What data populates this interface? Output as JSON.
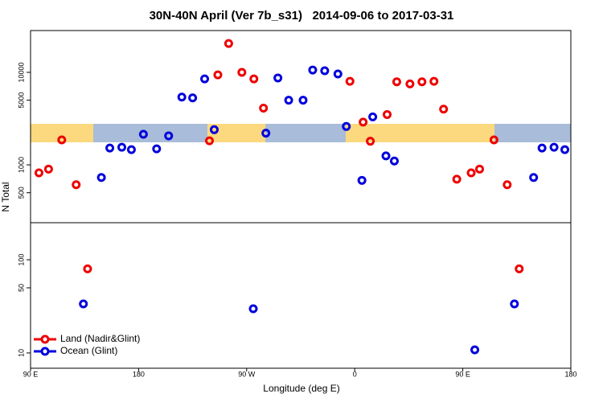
{
  "chart_data": [
    {
      "type": "scatter",
      "title": "30N-40N April (Ver 7b_s31)   2014-09-06 to 2017-03-31",
      "y_label": "N Total",
      "log_y": true,
      "xlim": [
        90,
        540
      ],
      "ylim": [
        237,
        28300
      ],
      "yticks": [
        500,
        1000,
        5000,
        10000
      ],
      "series": [
        {
          "color": "#ee0000",
          "x": [
            97,
            105,
            116,
            128,
            239,
            246,
            255,
            266,
            276,
            284,
            356,
            367,
            373,
            387,
            395,
            406,
            416,
            426,
            434,
            445,
            457,
            464,
            476,
            487
          ],
          "values": [
            820,
            900,
            1860,
            610,
            1820,
            9400,
            20500,
            10000,
            8500,
            4100,
            8000,
            2900,
            1800,
            3500,
            7900,
            7500,
            7900,
            8000,
            4000,
            700,
            820,
            900,
            1860,
            610
          ]
        },
        {
          "color": "#0000dd",
          "x": [
            149,
            156,
            166,
            174,
            184,
            195,
            205,
            216,
            225,
            235,
            243,
            286,
            296,
            305,
            317,
            325,
            335,
            346,
            353,
            366,
            375,
            386,
            393,
            509,
            516,
            526,
            535
          ],
          "values": [
            730,
            1520,
            1550,
            1460,
            2140,
            1490,
            2060,
            5400,
            5300,
            8500,
            2400,
            2200,
            8700,
            5000,
            5000,
            10600,
            10400,
            9600,
            2600,
            680,
            3300,
            1250,
            1100,
            730,
            1520,
            1550,
            1460
          ]
        }
      ]
    },
    {
      "type": "scatter",
      "x_label": "Longitude (deg E)",
      "log_y": true,
      "legend": "bottom-left",
      "xlim": [
        90,
        540
      ],
      "xticks": [
        {
          "value": 90,
          "label": "90 E"
        },
        180,
        {
          "value": 270,
          "label": "90 W"
        },
        {
          "value": 360,
          "label": "0"
        },
        {
          "value": 450,
          "label": "90 E"
        },
        {
          "value": 540,
          "label": "180"
        }
      ],
      "ylim": [
        6.85,
        250
      ],
      "yticks": [
        10,
        50,
        100
      ],
      "series": [
        {
          "name": "Land (Nadir&Glint)",
          "color": "#ee0000",
          "x": [
            137.5,
            497
          ],
          "values": [
            80,
            80
          ]
        },
        {
          "name": "Ocean (Glint)",
          "color": "#0000dd",
          "x": [
            134,
            275.5,
            460,
            493
          ],
          "values": [
            33.6,
            29.8,
            10.8,
            33.6
          ]
        }
      ]
    }
  ]
}
